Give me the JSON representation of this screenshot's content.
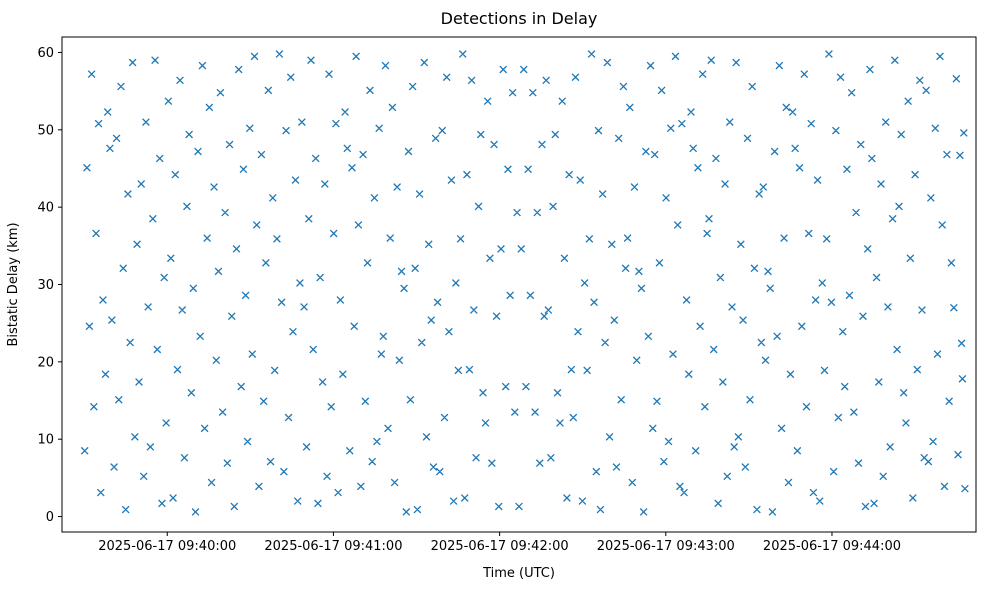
{
  "chart_data": {
    "type": "scatter",
    "title": "Detections in Delay",
    "xlabel": "Time (UTC)",
    "ylabel": "Bistatic Delay (km)",
    "grid": false,
    "legend": "none",
    "marker": {
      "shape": "x",
      "color": "#1f77b4",
      "size": 7
    },
    "frame_color": "#000000",
    "x_axis": {
      "unit": "seconds_from_axis_start",
      "start_utc": "2025-06-17 09:39:22",
      "end_utc": "2025-06-17 09:44:52",
      "range": [
        0,
        330
      ],
      "ticks": [
        {
          "t": 38,
          "label": "2025-06-17 09:40:00"
        },
        {
          "t": 98,
          "label": "2025-06-17 09:41:00"
        },
        {
          "t": 158,
          "label": "2025-06-17 09:42:00"
        },
        {
          "t": 218,
          "label": "2025-06-17 09:43:00"
        },
        {
          "t": 278,
          "label": "2025-06-17 09:44:00"
        }
      ]
    },
    "y_axis": {
      "range": [
        -2,
        62
      ],
      "ticks": [
        0,
        10,
        20,
        30,
        40,
        50,
        60
      ]
    },
    "points": [
      [
        8.2,
        8.5
      ],
      [
        9.0,
        45.1
      ],
      [
        9.9,
        24.6
      ],
      [
        10.7,
        57.2
      ],
      [
        11.5,
        14.2
      ],
      [
        12.3,
        36.6
      ],
      [
        13.2,
        50.8
      ],
      [
        14.0,
        3.1
      ],
      [
        14.8,
        28.0
      ],
      [
        15.7,
        18.4
      ],
      [
        16.5,
        52.3
      ],
      [
        17.3,
        47.6
      ],
      [
        18.0,
        25.4
      ],
      [
        18.8,
        6.4
      ],
      [
        19.7,
        48.9
      ],
      [
        20.5,
        15.1
      ],
      [
        21.3,
        55.6
      ],
      [
        22.1,
        32.1
      ],
      [
        23.0,
        0.9
      ],
      [
        23.8,
        41.7
      ],
      [
        24.6,
        22.5
      ],
      [
        25.5,
        58.7
      ],
      [
        26.3,
        10.3
      ],
      [
        27.1,
        35.2
      ],
      [
        27.8,
        17.4
      ],
      [
        28.6,
        43.0
      ],
      [
        29.5,
        5.2
      ],
      [
        30.3,
        51.0
      ],
      [
        31.1,
        27.1
      ],
      [
        31.9,
        9.0
      ],
      [
        32.8,
        38.5
      ],
      [
        33.6,
        59.0
      ],
      [
        34.4,
        21.6
      ],
      [
        35.3,
        46.3
      ],
      [
        36.1,
        1.7
      ],
      [
        36.9,
        30.9
      ],
      [
        37.6,
        12.1
      ],
      [
        38.4,
        53.7
      ],
      [
        39.3,
        33.4
      ],
      [
        40.1,
        2.4
      ],
      [
        40.9,
        44.2
      ],
      [
        41.7,
        19.0
      ],
      [
        42.6,
        56.4
      ],
      [
        43.4,
        26.7
      ],
      [
        44.2,
        7.6
      ],
      [
        45.1,
        40.1
      ],
      [
        45.9,
        49.4
      ],
      [
        46.7,
        16.0
      ],
      [
        47.4,
        29.5
      ],
      [
        48.2,
        0.6
      ],
      [
        49.1,
        47.2
      ],
      [
        49.9,
        23.3
      ],
      [
        50.7,
        58.3
      ],
      [
        51.5,
        11.4
      ],
      [
        52.4,
        36.0
      ],
      [
        53.2,
        52.9
      ],
      [
        54.0,
        4.4
      ],
      [
        54.9,
        42.6
      ],
      [
        55.7,
        20.2
      ],
      [
        56.5,
        31.7
      ],
      [
        57.2,
        54.8
      ],
      [
        58.0,
        13.5
      ],
      [
        58.9,
        39.3
      ],
      [
        59.7,
        6.9
      ],
      [
        60.5,
        48.1
      ],
      [
        61.3,
        25.9
      ],
      [
        62.2,
        1.3
      ],
      [
        63.0,
        34.6
      ],
      [
        63.8,
        57.8
      ],
      [
        64.7,
        16.8
      ],
      [
        65.5,
        44.9
      ],
      [
        66.3,
        28.6
      ],
      [
        67.0,
        9.7
      ],
      [
        67.8,
        50.2
      ],
      [
        68.7,
        21.0
      ],
      [
        69.5,
        59.5
      ],
      [
        70.3,
        37.7
      ],
      [
        71.1,
        3.9
      ],
      [
        72.0,
        46.8
      ],
      [
        72.8,
        14.9
      ],
      [
        73.6,
        32.8
      ],
      [
        74.5,
        55.1
      ],
      [
        75.3,
        7.1
      ],
      [
        76.1,
        41.2
      ],
      [
        76.8,
        18.9
      ],
      [
        77.6,
        35.9
      ],
      [
        78.5,
        59.8
      ],
      [
        79.3,
        27.7
      ],
      [
        80.1,
        5.8
      ],
      [
        80.9,
        49.9
      ],
      [
        81.8,
        12.8
      ],
      [
        82.6,
        56.8
      ],
      [
        83.4,
        23.9
      ],
      [
        84.3,
        43.5
      ],
      [
        85.1,
        2.0
      ],
      [
        85.9,
        30.2
      ],
      [
        86.6,
        51.0
      ],
      [
        87.4,
        27.1
      ],
      [
        88.3,
        9.0
      ],
      [
        89.1,
        38.5
      ],
      [
        89.9,
        59.0
      ],
      [
        90.7,
        21.6
      ],
      [
        91.6,
        46.3
      ],
      [
        92.4,
        1.7
      ],
      [
        93.2,
        30.9
      ],
      [
        94.1,
        17.4
      ],
      [
        94.9,
        43.0
      ],
      [
        95.7,
        5.2
      ],
      [
        96.4,
        57.2
      ],
      [
        97.2,
        14.2
      ],
      [
        98.1,
        36.6
      ],
      [
        98.9,
        50.8
      ],
      [
        99.7,
        3.1
      ],
      [
        100.5,
        28.0
      ],
      [
        101.4,
        18.4
      ],
      [
        102.2,
        52.3
      ],
      [
        103.0,
        47.6
      ],
      [
        103.9,
        8.5
      ],
      [
        104.7,
        45.1
      ],
      [
        105.5,
        24.6
      ],
      [
        106.2,
        59.5
      ],
      [
        107.0,
        37.7
      ],
      [
        107.9,
        3.9
      ],
      [
        108.7,
        46.8
      ],
      [
        109.5,
        14.9
      ],
      [
        110.3,
        32.8
      ],
      [
        111.2,
        55.1
      ],
      [
        112.0,
        7.1
      ],
      [
        112.8,
        41.2
      ],
      [
        113.7,
        9.7
      ],
      [
        114.5,
        50.2
      ],
      [
        115.3,
        21.0
      ],
      [
        116.0,
        23.3
      ],
      [
        116.8,
        58.3
      ],
      [
        117.7,
        11.4
      ],
      [
        118.5,
        36.0
      ],
      [
        119.3,
        52.9
      ],
      [
        120.1,
        4.4
      ],
      [
        121.0,
        42.6
      ],
      [
        121.8,
        20.2
      ],
      [
        122.6,
        31.7
      ],
      [
        123.5,
        29.5
      ],
      [
        124.3,
        0.6
      ],
      [
        125.1,
        47.2
      ],
      [
        125.8,
        15.1
      ],
      [
        126.6,
        55.6
      ],
      [
        127.5,
        32.1
      ],
      [
        128.3,
        0.9
      ],
      [
        129.1,
        41.7
      ],
      [
        129.9,
        22.5
      ],
      [
        130.8,
        58.7
      ],
      [
        131.6,
        10.3
      ],
      [
        132.4,
        35.2
      ],
      [
        133.3,
        25.4
      ],
      [
        134.1,
        6.4
      ],
      [
        134.9,
        48.9
      ],
      [
        135.6,
        27.7
      ],
      [
        136.4,
        5.8
      ],
      [
        137.3,
        49.9
      ],
      [
        138.1,
        12.8
      ],
      [
        138.9,
        56.8
      ],
      [
        139.7,
        23.9
      ],
      [
        140.6,
        43.5
      ],
      [
        141.4,
        2.0
      ],
      [
        142.2,
        30.2
      ],
      [
        143.1,
        18.9
      ],
      [
        143.9,
        35.9
      ],
      [
        144.7,
        59.8
      ],
      [
        145.4,
        2.4
      ],
      [
        146.2,
        44.2
      ],
      [
        147.1,
        19.0
      ],
      [
        147.9,
        56.4
      ],
      [
        148.7,
        26.7
      ],
      [
        149.5,
        7.6
      ],
      [
        150.4,
        40.1
      ],
      [
        151.2,
        49.4
      ],
      [
        152.0,
        16.0
      ],
      [
        152.9,
        12.1
      ],
      [
        153.7,
        53.7
      ],
      [
        154.5,
        33.4
      ],
      [
        155.2,
        6.9
      ],
      [
        156.0,
        48.1
      ],
      [
        156.9,
        25.9
      ],
      [
        157.7,
        1.3
      ],
      [
        158.5,
        34.6
      ],
      [
        159.3,
        57.8
      ],
      [
        160.2,
        16.8
      ],
      [
        161.0,
        44.9
      ],
      [
        161.8,
        28.6
      ],
      [
        162.7,
        54.8
      ],
      [
        163.5,
        13.5
      ],
      [
        164.3,
        39.3
      ],
      [
        165.0,
        1.3
      ],
      [
        165.8,
        34.6
      ],
      [
        166.7,
        57.8
      ],
      [
        167.5,
        16.8
      ],
      [
        168.3,
        44.9
      ],
      [
        169.1,
        28.6
      ],
      [
        170.0,
        54.8
      ],
      [
        170.8,
        13.5
      ],
      [
        171.6,
        39.3
      ],
      [
        172.5,
        6.9
      ],
      [
        173.3,
        48.1
      ],
      [
        174.1,
        25.9
      ],
      [
        174.8,
        56.4
      ],
      [
        175.6,
        26.7
      ],
      [
        176.5,
        7.6
      ],
      [
        177.3,
        40.1
      ],
      [
        178.1,
        49.4
      ],
      [
        178.9,
        16.0
      ],
      [
        179.8,
        12.1
      ],
      [
        180.6,
        53.7
      ],
      [
        181.4,
        33.4
      ],
      [
        182.3,
        2.4
      ],
      [
        183.1,
        44.2
      ],
      [
        183.9,
        19.0
      ],
      [
        184.6,
        12.8
      ],
      [
        185.4,
        56.8
      ],
      [
        186.3,
        23.9
      ],
      [
        187.1,
        43.5
      ],
      [
        187.9,
        2.0
      ],
      [
        188.7,
        30.2
      ],
      [
        189.6,
        18.9
      ],
      [
        190.4,
        35.9
      ],
      [
        191.2,
        59.8
      ],
      [
        192.1,
        27.7
      ],
      [
        192.9,
        5.8
      ],
      [
        193.7,
        49.9
      ],
      [
        194.4,
        0.9
      ],
      [
        195.2,
        41.7
      ],
      [
        196.1,
        22.5
      ],
      [
        196.9,
        58.7
      ],
      [
        197.7,
        10.3
      ],
      [
        198.5,
        35.2
      ],
      [
        199.4,
        25.4
      ],
      [
        200.2,
        6.4
      ],
      [
        201.0,
        48.9
      ],
      [
        201.9,
        15.1
      ],
      [
        202.7,
        55.6
      ],
      [
        203.5,
        32.1
      ],
      [
        204.2,
        36.0
      ],
      [
        205.0,
        52.9
      ],
      [
        205.9,
        4.4
      ],
      [
        206.7,
        42.6
      ],
      [
        207.5,
        20.2
      ],
      [
        208.3,
        31.7
      ],
      [
        209.2,
        29.5
      ],
      [
        210.0,
        0.6
      ],
      [
        210.8,
        47.2
      ],
      [
        211.7,
        23.3
      ],
      [
        212.5,
        58.3
      ],
      [
        213.3,
        11.4
      ],
      [
        214.0,
        46.8
      ],
      [
        214.8,
        14.9
      ],
      [
        215.7,
        32.8
      ],
      [
        216.5,
        55.1
      ],
      [
        217.3,
        7.1
      ],
      [
        218.1,
        41.2
      ],
      [
        219.0,
        9.7
      ],
      [
        219.8,
        50.2
      ],
      [
        220.6,
        21.0
      ],
      [
        221.5,
        59.5
      ],
      [
        222.3,
        37.7
      ],
      [
        223.1,
        3.9
      ],
      [
        223.8,
        50.8
      ],
      [
        224.6,
        3.1
      ],
      [
        225.5,
        28.0
      ],
      [
        226.3,
        18.4
      ],
      [
        227.1,
        52.3
      ],
      [
        227.9,
        47.6
      ],
      [
        228.8,
        8.5
      ],
      [
        229.6,
        45.1
      ],
      [
        230.4,
        24.6
      ],
      [
        231.3,
        57.2
      ],
      [
        232.1,
        14.2
      ],
      [
        232.9,
        36.6
      ],
      [
        233.6,
        38.5
      ],
      [
        234.4,
        59.0
      ],
      [
        235.3,
        21.6
      ],
      [
        236.1,
        46.3
      ],
      [
        236.9,
        1.7
      ],
      [
        237.7,
        30.9
      ],
      [
        238.6,
        17.4
      ],
      [
        239.4,
        43.0
      ],
      [
        240.2,
        5.2
      ],
      [
        241.1,
        51.0
      ],
      [
        241.9,
        27.1
      ],
      [
        242.7,
        9.0
      ],
      [
        243.4,
        58.7
      ],
      [
        244.2,
        10.3
      ],
      [
        245.1,
        35.2
      ],
      [
        245.9,
        25.4
      ],
      [
        246.7,
        6.4
      ],
      [
        247.5,
        48.9
      ],
      [
        248.4,
        15.1
      ],
      [
        249.2,
        55.6
      ],
      [
        250.0,
        32.1
      ],
      [
        250.9,
        0.9
      ],
      [
        251.7,
        41.7
      ],
      [
        252.5,
        22.5
      ],
      [
        253.2,
        42.6
      ],
      [
        254.0,
        20.2
      ],
      [
        254.9,
        31.7
      ],
      [
        255.7,
        29.5
      ],
      [
        256.5,
        0.6
      ],
      [
        257.3,
        47.2
      ],
      [
        258.2,
        23.3
      ],
      [
        259.0,
        58.3
      ],
      [
        259.8,
        11.4
      ],
      [
        260.7,
        36.0
      ],
      [
        261.5,
        52.9
      ],
      [
        262.3,
        4.4
      ],
      [
        263.0,
        18.4
      ],
      [
        263.8,
        52.3
      ],
      [
        264.7,
        47.6
      ],
      [
        265.5,
        8.5
      ],
      [
        266.3,
        45.1
      ],
      [
        267.1,
        24.6
      ],
      [
        268.0,
        57.2
      ],
      [
        268.8,
        14.2
      ],
      [
        269.6,
        36.6
      ],
      [
        270.5,
        50.8
      ],
      [
        271.3,
        3.1
      ],
      [
        272.1,
        28.0
      ],
      [
        272.8,
        43.5
      ],
      [
        273.6,
        2.0
      ],
      [
        274.5,
        30.2
      ],
      [
        275.3,
        18.9
      ],
      [
        276.1,
        35.9
      ],
      [
        276.9,
        59.8
      ],
      [
        277.8,
        27.7
      ],
      [
        278.6,
        5.8
      ],
      [
        279.4,
        49.9
      ],
      [
        280.3,
        12.8
      ],
      [
        281.1,
        56.8
      ],
      [
        281.9,
        23.9
      ],
      [
        282.6,
        16.8
      ],
      [
        283.4,
        44.9
      ],
      [
        284.3,
        28.6
      ],
      [
        285.1,
        54.8
      ],
      [
        285.9,
        13.5
      ],
      [
        286.7,
        39.3
      ],
      [
        287.6,
        6.9
      ],
      [
        288.4,
        48.1
      ],
      [
        289.2,
        25.9
      ],
      [
        290.1,
        1.3
      ],
      [
        290.9,
        34.6
      ],
      [
        291.7,
        57.8
      ],
      [
        292.4,
        46.3
      ],
      [
        293.2,
        1.7
      ],
      [
        294.1,
        30.9
      ],
      [
        294.9,
        17.4
      ],
      [
        295.7,
        43.0
      ],
      [
        296.5,
        5.2
      ],
      [
        297.4,
        51.0
      ],
      [
        298.2,
        27.1
      ],
      [
        299.0,
        9.0
      ],
      [
        299.9,
        38.5
      ],
      [
        300.7,
        59.0
      ],
      [
        301.5,
        21.6
      ],
      [
        302.2,
        40.1
      ],
      [
        303.0,
        49.4
      ],
      [
        303.9,
        16.0
      ],
      [
        304.7,
        12.1
      ],
      [
        305.5,
        53.7
      ],
      [
        306.3,
        33.4
      ],
      [
        307.2,
        2.4
      ],
      [
        308.0,
        44.2
      ],
      [
        308.8,
        19.0
      ],
      [
        309.7,
        56.4
      ],
      [
        310.5,
        26.7
      ],
      [
        311.3,
        7.6
      ],
      [
        312.0,
        55.1
      ],
      [
        312.8,
        7.1
      ],
      [
        313.7,
        41.2
      ],
      [
        314.5,
        9.7
      ],
      [
        315.3,
        50.2
      ],
      [
        316.1,
        21.0
      ],
      [
        317.0,
        59.5
      ],
      [
        317.8,
        37.7
      ],
      [
        318.6,
        3.9
      ],
      [
        319.5,
        46.8
      ],
      [
        320.3,
        14.9
      ],
      [
        321.1,
        32.8
      ],
      [
        322.0,
        27.0
      ],
      [
        322.9,
        56.6
      ],
      [
        323.5,
        8.0
      ],
      [
        324.2,
        46.7
      ],
      [
        324.8,
        22.4
      ],
      [
        325.1,
        17.8
      ],
      [
        326.0,
        3.6
      ],
      [
        325.6,
        49.6
      ]
    ]
  }
}
